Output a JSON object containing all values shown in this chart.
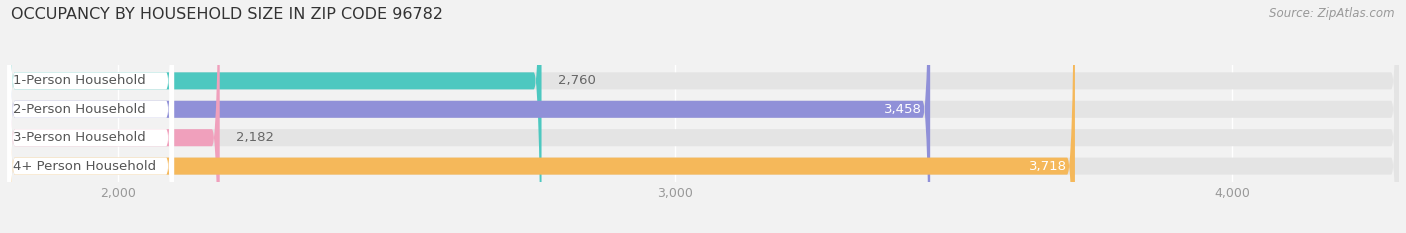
{
  "title": "OCCUPANCY BY HOUSEHOLD SIZE IN ZIP CODE 96782",
  "source": "Source: ZipAtlas.com",
  "categories": [
    "1-Person Household",
    "2-Person Household",
    "3-Person Household",
    "4+ Person Household"
  ],
  "values": [
    2760,
    3458,
    2182,
    3718
  ],
  "bar_colors": [
    "#4dc8c0",
    "#9090d8",
    "#f0a0bc",
    "#f5b85a"
  ],
  "xlim": [
    1800,
    4300
  ],
  "xticks": [
    2000,
    3000,
    4000
  ],
  "background_color": "#f2f2f2",
  "bar_background_color": "#e4e4e4",
  "title_fontsize": 11.5,
  "source_fontsize": 8.5,
  "tick_fontsize": 9,
  "label_fontsize": 9.5,
  "value_fontsize": 9.5
}
